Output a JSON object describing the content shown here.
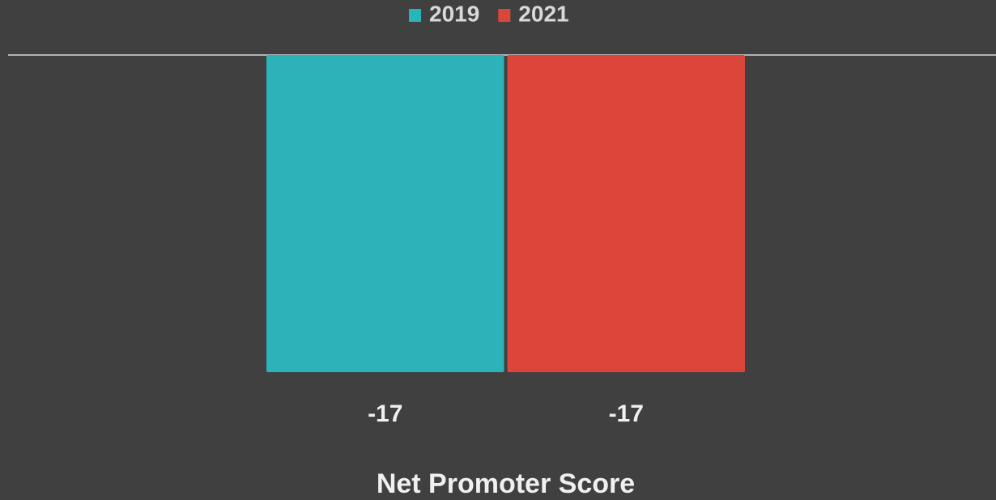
{
  "chart_data": {
    "type": "bar",
    "categories": [
      "Net Promoter Score"
    ],
    "series": [
      {
        "name": "2019",
        "color": "#2cb2b9",
        "values": [
          -17
        ]
      },
      {
        "name": "2021",
        "color": "#dc463a",
        "values": [
          -17
        ]
      }
    ],
    "ylim": [
      -17,
      0
    ],
    "legend": "top"
  }
}
